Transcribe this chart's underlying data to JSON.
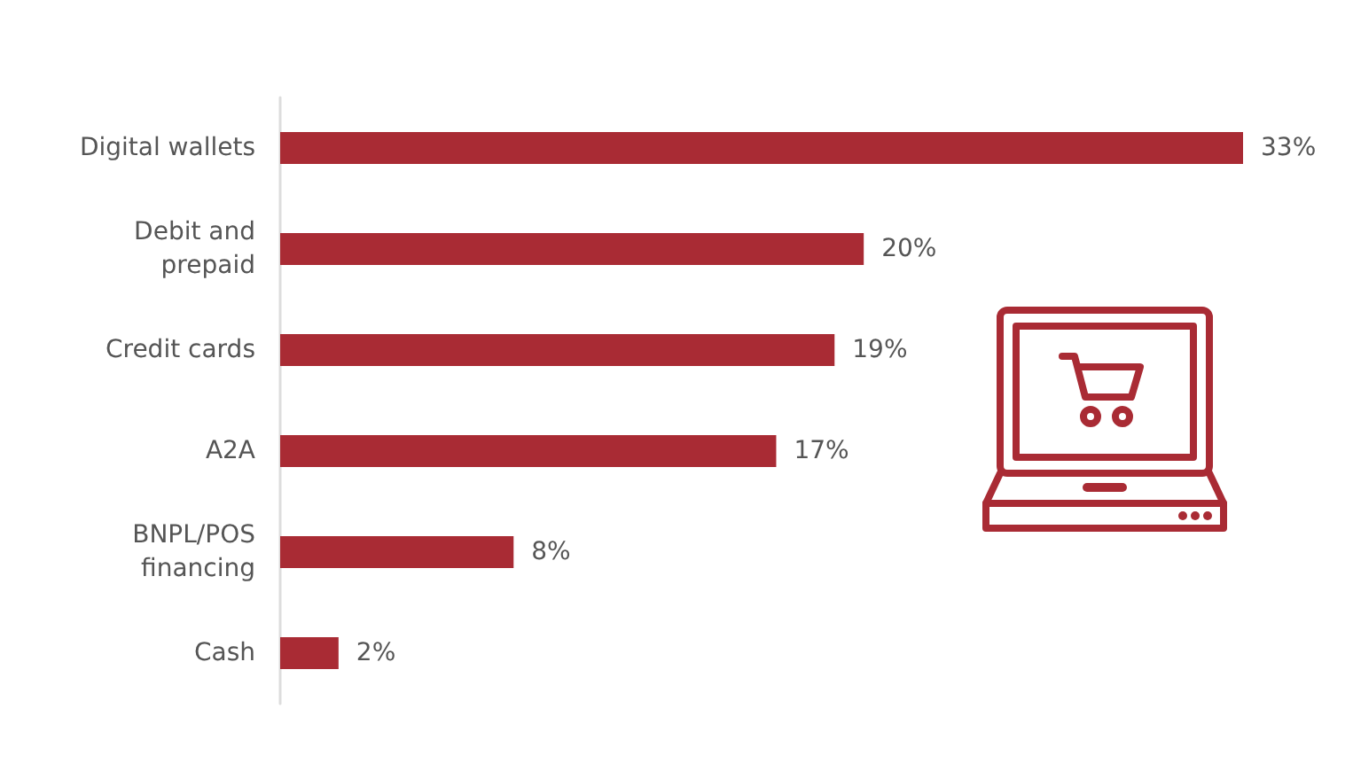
{
  "chart_data": {
    "type": "bar",
    "orientation": "horizontal",
    "categories": [
      "Digital wallets",
      "Debit and\nprepaid",
      "Credit cards",
      "A2A",
      "BNPL/POS\nfinancing",
      "Cash"
    ],
    "values": [
      33,
      20,
      19,
      17,
      8,
      2
    ],
    "value_labels": [
      "33%",
      "20%",
      "19%",
      "17%",
      "8%",
      "2%"
    ],
    "color": "#a92b34"
  }
}
